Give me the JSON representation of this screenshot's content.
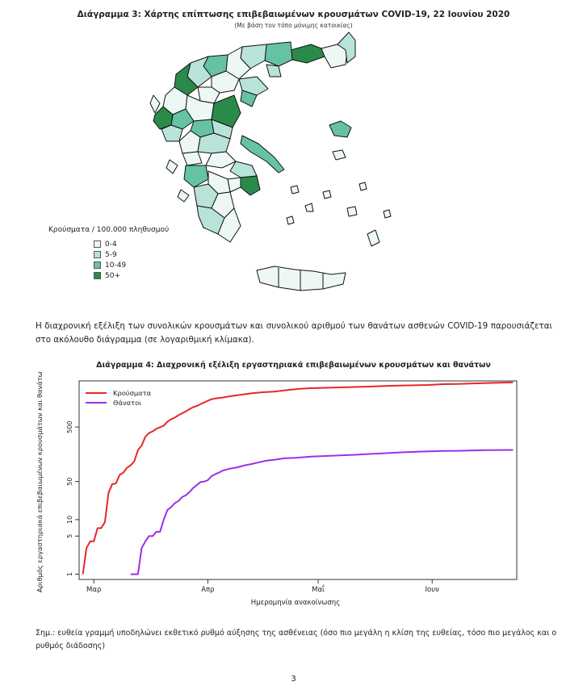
{
  "map": {
    "title": "Διάγραμμα 3: Χάρτης επίπτωσης επιβεβαιωμένων κρουσμάτων COVID-19, 22 Ιουνίου 2020",
    "subtitle": "(Με βάση τον τόπο μόνιμης κατοικίας)",
    "legend_title": "Κρούσματα / 100.000 πληθυσμού",
    "legend": [
      {
        "label": "0-4",
        "color": "#edf8f4"
      },
      {
        "label": "5-9",
        "color": "#b9e2d9"
      },
      {
        "label": "10-49",
        "color": "#66c2a4"
      },
      {
        "label": "50+",
        "color": "#2a8a4a"
      }
    ]
  },
  "paragraph": "Η διαχρονική εξέλιξη των συνολικών κρουσμάτων και συνολικού αριθμού των θανάτων ασθενών COVID-19 παρουσιάζεται στο ακόλουθο διάγραμμα (σε λογαριθμική κλίμακα).",
  "chart_data": {
    "type": "line",
    "title": "Διάγραμμα 4: Διαχρονική εξέλιξη εργαστηριακά επιβεβαιωμένων κρουσμάτων και θανάτων",
    "xlabel": "Ημερομηνία ανακοίνωσης",
    "ylabel": "Αριθμός εργαστηριακά επιβεβαιωμένων κρουσμάτων και θανάτων",
    "y_scale": "log",
    "y_ticks": [
      1,
      5,
      10,
      50,
      500
    ],
    "x_ticks": [
      {
        "label": "Μαρ",
        "day": 1
      },
      {
        "label": "Απρ",
        "day": 32
      },
      {
        "label": "Μαΐ",
        "day": 62
      },
      {
        "label": "Ιουν",
        "day": 93
      }
    ],
    "x_range": [
      -3,
      116
    ],
    "y_range": [
      0.8,
      3500
    ],
    "legend_position": "top-left",
    "series": [
      {
        "name": "Κρούσματα",
        "color": "#e8262a",
        "points": [
          [
            -2,
            1
          ],
          [
            -1,
            3
          ],
          [
            0,
            4
          ],
          [
            1,
            4
          ],
          [
            2,
            7
          ],
          [
            3,
            7
          ],
          [
            4,
            9
          ],
          [
            5,
            31
          ],
          [
            6,
            45
          ],
          [
            7,
            46
          ],
          [
            8,
            66
          ],
          [
            9,
            73
          ],
          [
            10,
            89
          ],
          [
            11,
            99
          ],
          [
            12,
            117
          ],
          [
            13,
            190
          ],
          [
            14,
            228
          ],
          [
            15,
            331
          ],
          [
            16,
            387
          ],
          [
            17,
            418
          ],
          [
            18,
            464
          ],
          [
            19,
            495
          ],
          [
            20,
            530
          ],
          [
            21,
            624
          ],
          [
            22,
            695
          ],
          [
            23,
            743
          ],
          [
            24,
            821
          ],
          [
            25,
            892
          ],
          [
            26,
            966
          ],
          [
            27,
            1061
          ],
          [
            28,
            1156
          ],
          [
            29,
            1212
          ],
          [
            30,
            1314
          ],
          [
            31,
            1415
          ],
          [
            32,
            1514
          ],
          [
            33,
            1613
          ],
          [
            34,
            1673
          ],
          [
            36,
            1735
          ],
          [
            38,
            1832
          ],
          [
            41,
            1955
          ],
          [
            44,
            2081
          ],
          [
            47,
            2170
          ],
          [
            50,
            2235
          ],
          [
            54,
            2401
          ],
          [
            57,
            2506
          ],
          [
            60,
            2576
          ],
          [
            64,
            2620
          ],
          [
            68,
            2663
          ],
          [
            72,
            2710
          ],
          [
            76,
            2760
          ],
          [
            80,
            2836
          ],
          [
            84,
            2882
          ],
          [
            88,
            2915
          ],
          [
            92,
            2952
          ],
          [
            96,
            3049
          ],
          [
            100,
            3089
          ],
          [
            104,
            3148
          ],
          [
            108,
            3203
          ],
          [
            112,
            3256
          ],
          [
            115,
            3287
          ]
        ]
      },
      {
        "name": "Θάνατοι",
        "color": "#9b30e8",
        "points": [
          [
            11,
            1
          ],
          [
            13,
            1
          ],
          [
            14,
            3
          ],
          [
            15,
            4
          ],
          [
            16,
            5
          ],
          [
            17,
            5
          ],
          [
            18,
            6
          ],
          [
            19,
            6
          ],
          [
            20,
            10
          ],
          [
            21,
            15
          ],
          [
            22,
            17
          ],
          [
            23,
            20
          ],
          [
            24,
            22
          ],
          [
            25,
            26
          ],
          [
            26,
            28
          ],
          [
            27,
            32
          ],
          [
            28,
            38
          ],
          [
            29,
            43
          ],
          [
            30,
            49
          ],
          [
            31,
            50
          ],
          [
            32,
            53
          ],
          [
            33,
            63
          ],
          [
            34,
            68
          ],
          [
            35,
            73
          ],
          [
            36,
            79
          ],
          [
            38,
            86
          ],
          [
            40,
            91
          ],
          [
            42,
            99
          ],
          [
            44,
            105
          ],
          [
            46,
            113
          ],
          [
            48,
            121
          ],
          [
            50,
            125
          ],
          [
            53,
            134
          ],
          [
            56,
            136
          ],
          [
            60,
            143
          ],
          [
            64,
            147
          ],
          [
            68,
            151
          ],
          [
            72,
            155
          ],
          [
            76,
            160
          ],
          [
            80,
            165
          ],
          [
            84,
            171
          ],
          [
            88,
            175
          ],
          [
            92,
            179
          ],
          [
            96,
            182
          ],
          [
            100,
            183
          ],
          [
            104,
            186
          ],
          [
            108,
            188
          ],
          [
            112,
            189
          ],
          [
            115,
            190
          ]
        ]
      }
    ]
  },
  "note": "Σημ.: ευθεία γραμμή υποδηλώνει εκθετικό ρυθμό αύξησης της ασθένειας (όσο πιο μεγάλη η κλίση της ευθείας, τόσο πιο μεγάλος και ο ρυθμός διάδοσης)",
  "page_number": "3"
}
